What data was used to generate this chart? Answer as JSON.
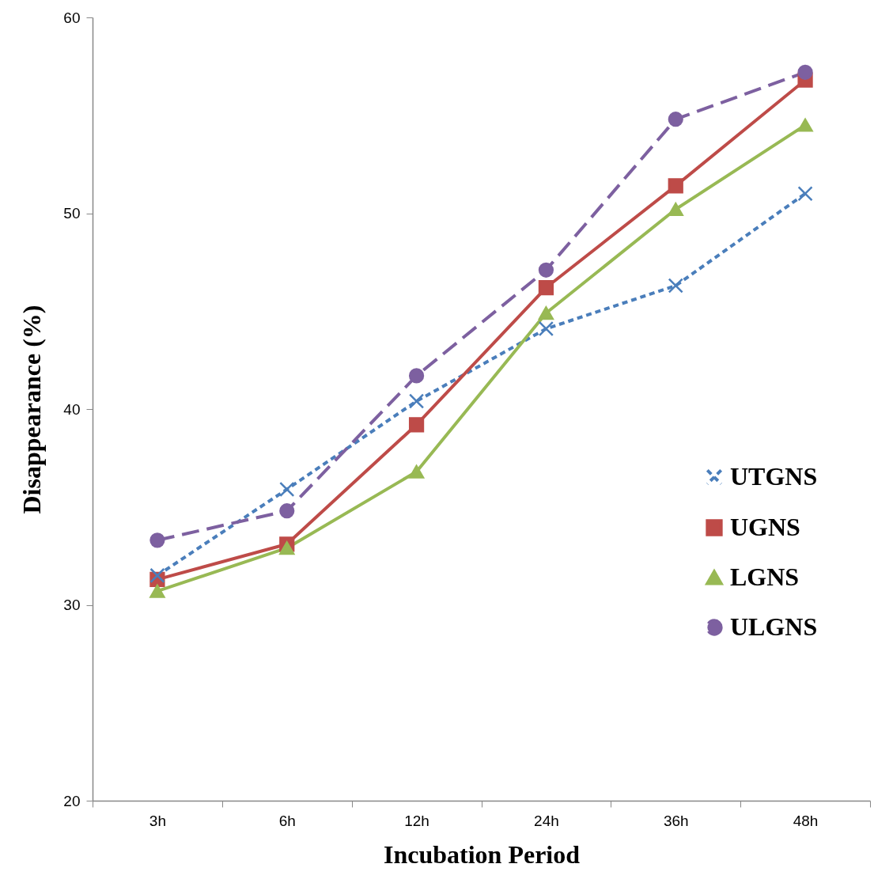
{
  "chart_data": {
    "type": "line",
    "xlabel": "Incubation Period",
    "ylabel": "Disappearance (%)",
    "categories": [
      "3h",
      "6h",
      "12h",
      "24h",
      "36h",
      "48h"
    ],
    "ylim": [
      20,
      60
    ],
    "yticks": [
      20,
      30,
      40,
      50,
      60
    ],
    "grid": false,
    "legend": "right",
    "series": [
      {
        "name": "UTGNS",
        "color": "#4a7ebb",
        "marker": "cross",
        "line_style": "dotted",
        "values": [
          31.5,
          35.9,
          40.4,
          44.1,
          46.3,
          51.0
        ]
      },
      {
        "name": "UGNS",
        "color": "#be4b48",
        "marker": "square",
        "line_style": "solid",
        "values": [
          31.3,
          33.1,
          39.2,
          46.2,
          51.4,
          56.8
        ]
      },
      {
        "name": "LGNS",
        "color": "#98b954",
        "marker": "triangle",
        "line_style": "solid",
        "values": [
          30.7,
          32.9,
          36.8,
          44.9,
          50.2,
          54.5
        ]
      },
      {
        "name": "ULGNS",
        "color": "#7d60a0",
        "marker": "circle",
        "line_style": "dashed",
        "values": [
          33.3,
          34.8,
          41.7,
          47.1,
          54.8,
          57.2
        ]
      }
    ]
  }
}
